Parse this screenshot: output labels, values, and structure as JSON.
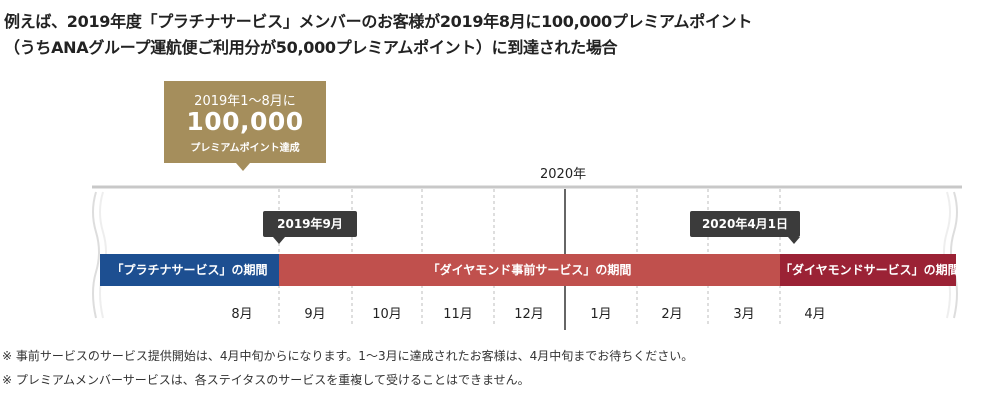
{
  "heading": {
    "line1": "例えば、2019年度「プラチナサービス」メンバーのお客様が2019年8月に100,000プレミアムポイント",
    "line2": "（うちANAグループ運航便ご利用分が50,000プレミアムポイント）に到達された場合"
  },
  "achievement": {
    "period": "2019年1～8月に",
    "value": "100,000",
    "unit": "プレミアムポイント達成"
  },
  "timeline": {
    "year_label": "2020年",
    "markers": [
      "2019年9月",
      "2020年4月1日"
    ],
    "bars": {
      "platinum": "「プラチナサービス」の期間",
      "pre_service": "「ダイヤモンド事前サービス」の期間",
      "diamond": "「ダイヤモンドサービス」の期間"
    },
    "months": [
      "8月",
      "9月",
      "10月",
      "11月",
      "12月",
      "1月",
      "2月",
      "3月",
      "4月"
    ],
    "colors": {
      "platinum": "#1d4f91",
      "pre_service": "#c0504d",
      "diamond": "#9b2235",
      "achievement": "#a58e5c",
      "marker": "#3b3b3b"
    }
  },
  "notes": [
    "※ 事前サービスのサービス提供開始は、4月中旬からになります。1～3月に達成されたお客様は、4月中旬までお待ちください。",
    "※ プレミアムメンバーサービスは、各ステイタスのサービスを重複して受けることはできません。"
  ]
}
